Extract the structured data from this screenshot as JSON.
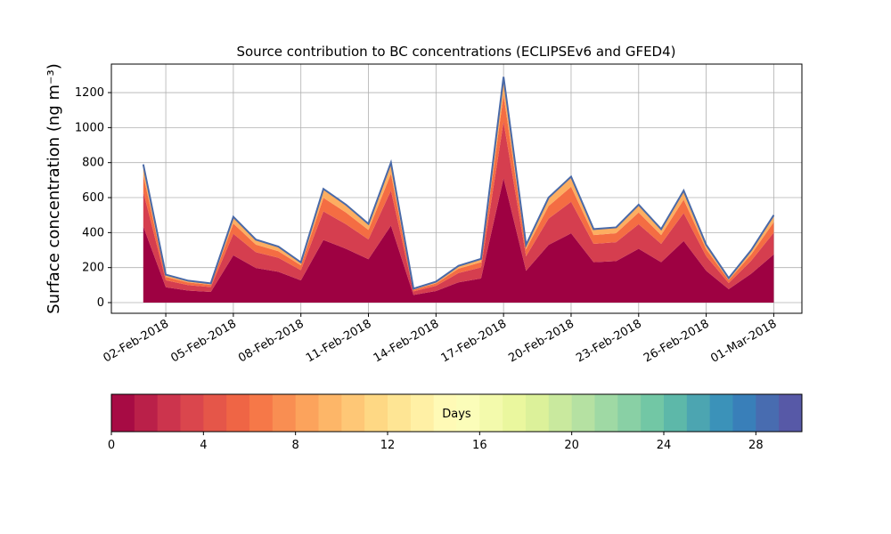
{
  "chart_data": {
    "type": "stacked_area",
    "title": "Source contribution to BC concentrations (ECLIPSEv6 and GFED4)",
    "y_label": "Surface concentration (ng m⁻³)",
    "x": [
      "2018-02-01",
      "2018-02-02",
      "2018-02-03",
      "2018-02-04",
      "2018-02-05",
      "2018-02-06",
      "2018-02-07",
      "2018-02-08",
      "2018-02-09",
      "2018-02-10",
      "2018-02-11",
      "2018-02-12",
      "2018-02-13",
      "2018-02-14",
      "2018-02-15",
      "2018-02-16",
      "2018-02-17",
      "2018-02-18",
      "2018-02-19",
      "2018-02-20",
      "2018-02-21",
      "2018-02-22",
      "2018-02-23",
      "2018-02-24",
      "2018-02-25",
      "2018-02-26",
      "2018-02-27",
      "2018-02-28",
      "2018-03-01"
    ],
    "series": [
      {
        "color": "#9e0142",
        "values": [
          435,
          88,
          69,
          61,
          270,
          198,
          176,
          127,
          358,
          308,
          248,
          440,
          44,
          66,
          116,
          138,
          710,
          182,
          330,
          396,
          231,
          237,
          308,
          231,
          352,
          182,
          77,
          165,
          275
        ]
      },
      {
        "color": "#d53e4f",
        "values": [
          198,
          40,
          31,
          28,
          123,
          90,
          80,
          58,
          163,
          140,
          113,
          200,
          20,
          30,
          53,
          63,
          323,
          83,
          150,
          180,
          105,
          108,
          140,
          105,
          160,
          83,
          35,
          75,
          125
        ]
      },
      {
        "color": "#f46d43",
        "values": [
          95,
          19,
          15,
          13,
          59,
          43,
          38,
          28,
          78,
          67,
          54,
          96,
          10,
          14,
          25,
          30,
          155,
          40,
          72,
          86,
          50,
          52,
          67,
          50,
          77,
          40,
          17,
          36,
          60
        ]
      },
      {
        "color": "#fdae61",
        "values": [
          62,
          13,
          10,
          8,
          38,
          29,
          26,
          17,
          51,
          45,
          35,
          64,
          6,
          10,
          16,
          19,
          102,
          25,
          48,
          58,
          34,
          33,
          45,
          34,
          51,
          25,
          11,
          24,
          40
        ]
      }
    ],
    "outline_color": "#4a6aa8",
    "xlim": [
      "2018-01-30T14:00",
      "2018-03-02T06:00"
    ],
    "xticks": [
      {
        "value": "2018-02-02",
        "label": "02-Feb-2018"
      },
      {
        "value": "2018-02-05",
        "label": "05-Feb-2018"
      },
      {
        "value": "2018-02-08",
        "label": "08-Feb-2018"
      },
      {
        "value": "2018-02-11",
        "label": "11-Feb-2018"
      },
      {
        "value": "2018-02-14",
        "label": "14-Feb-2018"
      },
      {
        "value": "2018-02-17",
        "label": "17-Feb-2018"
      },
      {
        "value": "2018-02-20",
        "label": "20-Feb-2018"
      },
      {
        "value": "2018-02-23",
        "label": "23-Feb-2018"
      },
      {
        "value": "2018-02-26",
        "label": "26-Feb-2018"
      },
      {
        "value": "2018-03-01",
        "label": "01-Mar-2018"
      }
    ],
    "ylim": [
      -61,
      1363
    ],
    "yticks": [
      0,
      200,
      400,
      600,
      800,
      1000,
      1200
    ],
    "grid": true,
    "colorbar": {
      "label": "Days",
      "lim": [
        0,
        30
      ],
      "levels": 30,
      "ticks": [
        0,
        4,
        8,
        12,
        16,
        20,
        24,
        28
      ],
      "colormap": [
        "#9e0142",
        "#d53e4f",
        "#f46d43",
        "#fdae61",
        "#fee08b",
        "#ffffbf",
        "#e6f598",
        "#abdda4",
        "#66c2a5",
        "#3288bd",
        "#5e4fa2"
      ]
    }
  }
}
